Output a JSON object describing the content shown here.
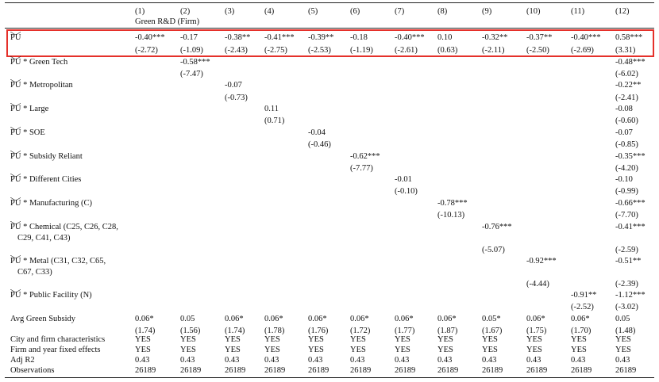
{
  "header": {
    "columns": [
      "(1)",
      "(2)",
      "(3)",
      "(4)",
      "(5)",
      "(6)",
      "(7)",
      "(8)",
      "(9)",
      "(10)",
      "(11)",
      "(12)"
    ],
    "group_label": "Green R&D (Firm)"
  },
  "rows": [
    {
      "var": "PU",
      "label": [
        ""
      ],
      "coef": [
        "-0.40***",
        "-0.17",
        "-0.38**",
        "-0.41***",
        "-0.39**",
        "-0.18",
        "-0.40***",
        "0.10",
        "-0.32**",
        "-0.37**",
        "-0.40***",
        "0.58***"
      ],
      "se": [
        "(-2.72)",
        "(-1.09)",
        "(-2.43)",
        "(-2.75)",
        "(-2.53)",
        "(-1.19)",
        "(-2.61)",
        "(0.63)",
        "(-2.11)",
        "(-2.50)",
        "(-2.69)",
        "(3.31)"
      ]
    },
    {
      "var": "PU",
      "label": [
        "* Green Tech"
      ],
      "coef": [
        null,
        "-0.58***",
        null,
        null,
        null,
        null,
        null,
        null,
        null,
        null,
        null,
        "-0.48***"
      ],
      "se": [
        null,
        "(-7.47)",
        null,
        null,
        null,
        null,
        null,
        null,
        null,
        null,
        null,
        "(-6.02)"
      ]
    },
    {
      "var": "PU",
      "label": [
        "* Metropolitan"
      ],
      "coef": [
        null,
        null,
        "-0.07",
        null,
        null,
        null,
        null,
        null,
        null,
        null,
        null,
        "-0.22**"
      ],
      "se": [
        null,
        null,
        "(-0.73)",
        null,
        null,
        null,
        null,
        null,
        null,
        null,
        null,
        "(-2.41)"
      ]
    },
    {
      "var": "PU",
      "label": [
        "* Large"
      ],
      "coef": [
        null,
        null,
        null,
        "0.11",
        null,
        null,
        null,
        null,
        null,
        null,
        null,
        "-0.08"
      ],
      "se": [
        null,
        null,
        null,
        "(0.71)",
        null,
        null,
        null,
        null,
        null,
        null,
        null,
        "(-0.60)"
      ]
    },
    {
      "var": "PU",
      "label": [
        "* SOE"
      ],
      "coef": [
        null,
        null,
        null,
        null,
        "-0.04",
        null,
        null,
        null,
        null,
        null,
        null,
        "-0.07"
      ],
      "se": [
        null,
        null,
        null,
        null,
        "(-0.46)",
        null,
        null,
        null,
        null,
        null,
        null,
        "(-0.85)"
      ]
    },
    {
      "var": "PU",
      "label": [
        "* Subsidy Reliant"
      ],
      "coef": [
        null,
        null,
        null,
        null,
        null,
        "-0.62***",
        null,
        null,
        null,
        null,
        null,
        "-0.35***"
      ],
      "se": [
        null,
        null,
        null,
        null,
        null,
        "(-7.77)",
        null,
        null,
        null,
        null,
        null,
        "(-4.20)"
      ]
    },
    {
      "var": "PU",
      "label": [
        "* Different Cities"
      ],
      "coef": [
        null,
        null,
        null,
        null,
        null,
        null,
        "-0.01",
        null,
        null,
        null,
        null,
        "-0.10"
      ],
      "se": [
        null,
        null,
        null,
        null,
        null,
        null,
        "(-0.10)",
        null,
        null,
        null,
        null,
        "(-0.99)"
      ]
    },
    {
      "var": "PU",
      "label": [
        "* Manufacturing (C)"
      ],
      "coef": [
        null,
        null,
        null,
        null,
        null,
        null,
        null,
        "-0.78***",
        null,
        null,
        null,
        "-0.66***"
      ],
      "se": [
        null,
        null,
        null,
        null,
        null,
        null,
        null,
        "(-10.13)",
        null,
        null,
        null,
        "(-7.70)"
      ]
    },
    {
      "var": "PU",
      "label": [
        "* Chemical (C25, C26, C28,",
        "C29, C41, C43)"
      ],
      "coef": [
        null,
        null,
        null,
        null,
        null,
        null,
        null,
        null,
        "-0.76***",
        null,
        null,
        "-0.41***"
      ],
      "se": [
        null,
        null,
        null,
        null,
        null,
        null,
        null,
        null,
        "(-5.07)",
        null,
        null,
        "(-2.59)"
      ]
    },
    {
      "var": "PU",
      "label": [
        "* Metal (C31, C32, C65,",
        "C67, C33)"
      ],
      "coef": [
        null,
        null,
        null,
        null,
        null,
        null,
        null,
        null,
        null,
        "-0.92***",
        null,
        "-0.51**"
      ],
      "se": [
        null,
        null,
        null,
        null,
        null,
        null,
        null,
        null,
        null,
        "(-4.44)",
        null,
        "(-2.39)"
      ]
    },
    {
      "var": "PU",
      "label": [
        "* Public Facility (N)"
      ],
      "coef": [
        null,
        null,
        null,
        null,
        null,
        null,
        null,
        null,
        null,
        null,
        "-0.91**",
        "-1.12***"
      ],
      "se": [
        null,
        null,
        null,
        null,
        null,
        null,
        null,
        null,
        null,
        null,
        "(-2.52)",
        "(-3.02)"
      ]
    },
    {
      "label": [
        "Avg Green Subsidy"
      ],
      "coef": [
        "0.06*",
        "0.05",
        "0.06*",
        "0.06*",
        "0.06*",
        "0.06*",
        "0.06*",
        "0.06*",
        "0.05*",
        "0.06*",
        "0.06*",
        "0.05"
      ],
      "se": [
        "(1.74)",
        "(1.56)",
        "(1.74)",
        "(1.78)",
        "(1.76)",
        "(1.72)",
        "(1.77)",
        "(1.87)",
        "(1.67)",
        "(1.75)",
        "(1.70)",
        "(1.48)"
      ]
    },
    {
      "label": [
        "City and firm characteristics"
      ],
      "coef": [
        "YES",
        "YES",
        "YES",
        "YES",
        "YES",
        "YES",
        "YES",
        "YES",
        "YES",
        "YES",
        "YES",
        "YES"
      ]
    },
    {
      "label": [
        "Firm and year fixed effects"
      ],
      "coef": [
        "YES",
        "YES",
        "YES",
        "YES",
        "YES",
        "YES",
        "YES",
        "YES",
        "YES",
        "YES",
        "YES",
        "YES"
      ]
    },
    {
      "label": [
        "Adj R2"
      ],
      "coef": [
        "0.43",
        "0.43",
        "0.43",
        "0.43",
        "0.43",
        "0.43",
        "0.43",
        "0.43",
        "0.43",
        "0.43",
        "0.43",
        "0.43"
      ]
    },
    {
      "label": [
        "Observations"
      ],
      "coef": [
        "26189",
        "26189",
        "26189",
        "26189",
        "26189",
        "26189",
        "26189",
        "26189",
        "26189",
        "26189",
        "26189",
        "26189"
      ]
    }
  ]
}
